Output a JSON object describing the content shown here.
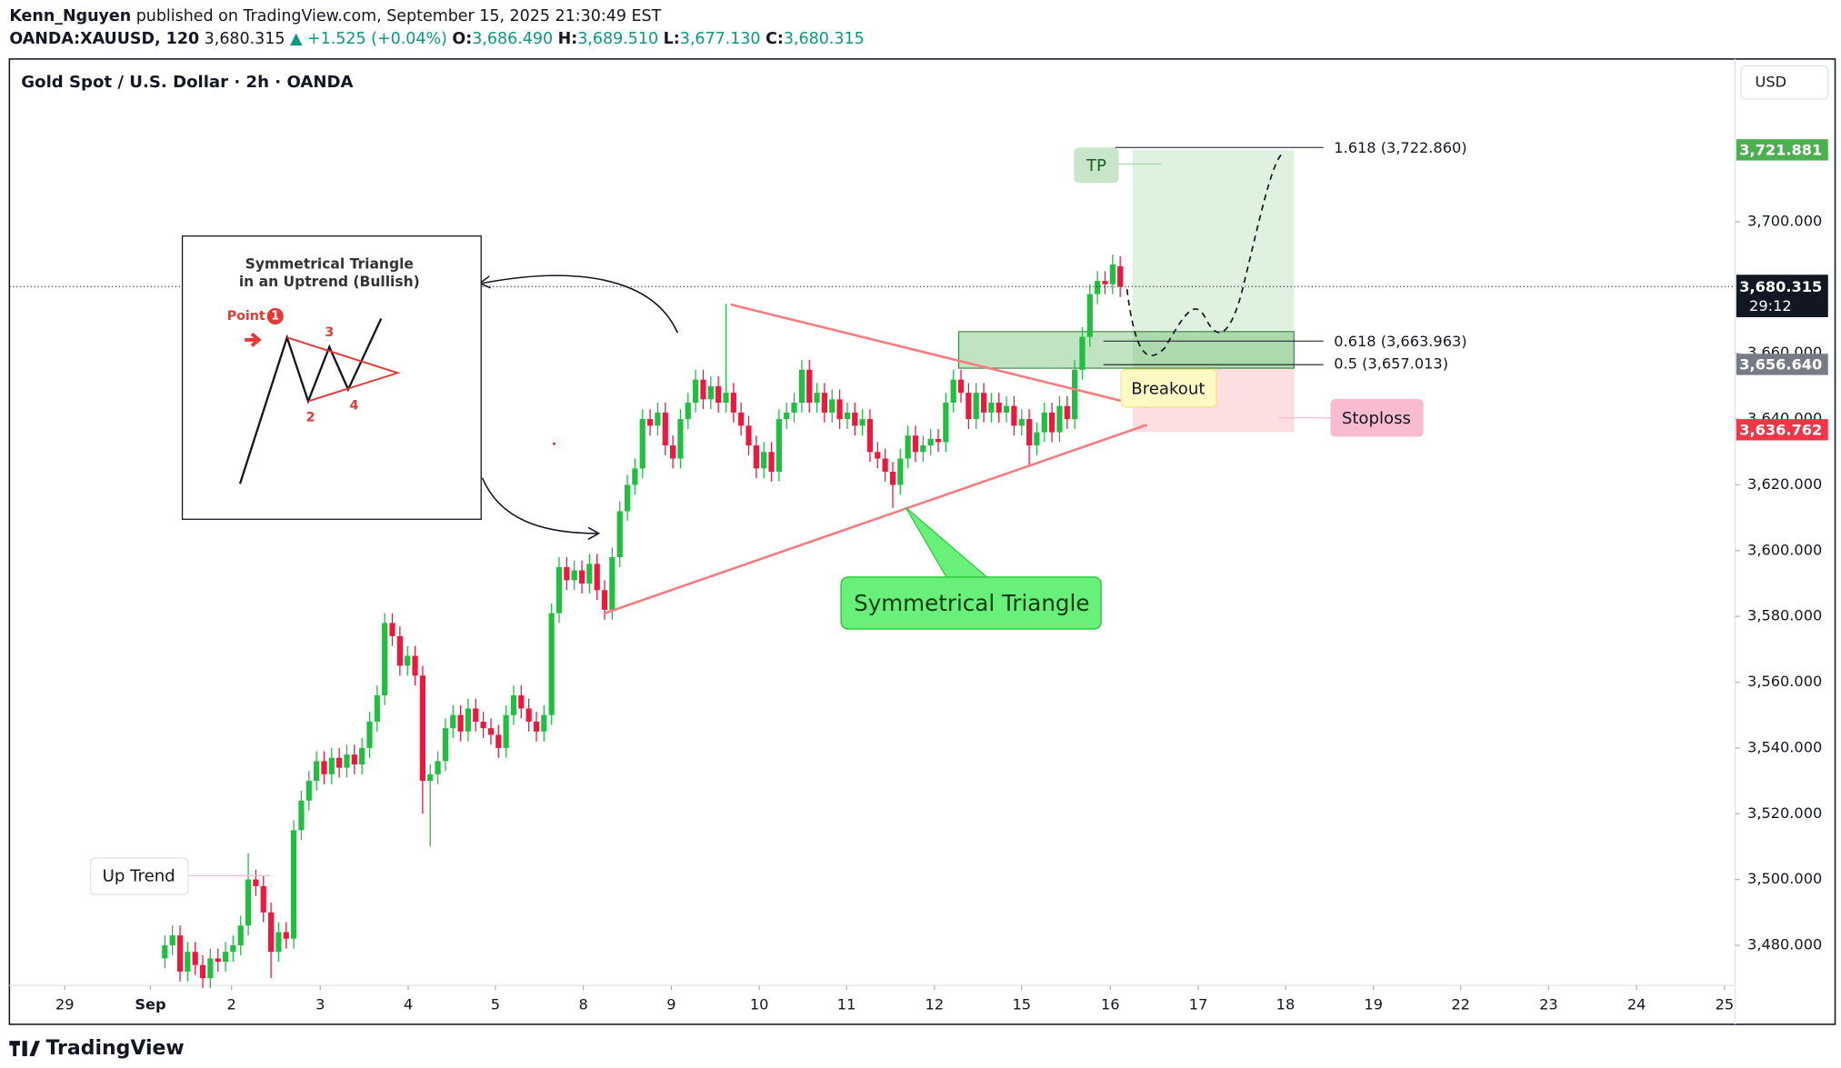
{
  "header": {
    "publisher": "Kenn_Nguyen",
    "published": "published on TradingView.com, September 15, 2025 21:30:49 EST",
    "symbol": "OANDA:XAUUSD, 120",
    "price": "3,680.315",
    "change": "▲ +1.525 (+0.04%)",
    "o_label": "O:",
    "o": "3,686.490",
    "h_label": "H:",
    "h": "3,689.510",
    "l_label": "L:",
    "l": "3,677.130",
    "c_label": "C:",
    "c": "3,680.315"
  },
  "footer": "TradingView",
  "chart_data": {
    "type": "candlestick",
    "title": "Gold Spot / U.S. Dollar · 2h · OANDA",
    "currency": "USD",
    "up_color": "#1fbf3f",
    "down_color": "#f0173f",
    "xlim": [
      -20.5,
      207.1
    ],
    "xticks": [
      {
        "value": -13.2,
        "label": "29"
      },
      {
        "value": -1.9,
        "label": "Sep"
      },
      {
        "value": 8.8,
        "label": "2"
      },
      {
        "value": 20.5,
        "label": "3"
      },
      {
        "value": 32.1,
        "label": "4"
      },
      {
        "value": 43.6,
        "label": "5"
      },
      {
        "value": 55.2,
        "label": "8"
      },
      {
        "value": 66.8,
        "label": "9"
      },
      {
        "value": 78.4,
        "label": "10"
      },
      {
        "value": 89.9,
        "label": "11"
      },
      {
        "value": 101.5,
        "label": "12"
      },
      {
        "value": 113,
        "label": "15"
      },
      {
        "value": 124.7,
        "label": "16"
      },
      {
        "value": 136.3,
        "label": "17"
      },
      {
        "value": 147.8,
        "label": "18"
      },
      {
        "value": 159.4,
        "label": "19"
      },
      {
        "value": 170.9,
        "label": "22"
      },
      {
        "value": 182.5,
        "label": "23"
      },
      {
        "value": 194.1,
        "label": "24"
      },
      {
        "value": 205.7,
        "label": "25"
      }
    ],
    "ylim": [
      3467.8,
      3749.5
    ],
    "yticks": [
      {
        "value": 3480,
        "label": "3,480.000"
      },
      {
        "value": 3500,
        "label": "3,500.000"
      },
      {
        "value": 3520,
        "label": "3,520.000"
      },
      {
        "value": 3540,
        "label": "3,540.000"
      },
      {
        "value": 3560,
        "label": "3,560.000"
      },
      {
        "value": 3580,
        "label": "3,580.000"
      },
      {
        "value": 3600,
        "label": "3,600.000"
      },
      {
        "value": 3620,
        "label": "3,620.000"
      },
      {
        "value": 3640,
        "label": "3,640.000"
      },
      {
        "value": 3660,
        "label": "3,660.000"
      },
      {
        "value": 3700,
        "label": "3,700.000"
      }
    ],
    "open": [
      3476,
      3480,
      3483,
      3472,
      3478,
      3474,
      3470,
      3476,
      3475,
      3478,
      3480,
      3486,
      3500,
      3498,
      3490,
      3478,
      3484,
      3482,
      3515,
      3524,
      3530,
      3536,
      3532,
      3537,
      3534,
      3538,
      3535,
      3540,
      3548,
      3556,
      3578,
      3574,
      3565,
      3568,
      3562,
      3530,
      3532,
      3536,
      3546,
      3550,
      3545,
      3552,
      3548,
      3546,
      3544,
      3540,
      3550,
      3556,
      3552,
      3548,
      3545,
      3550,
      3581,
      3595,
      3591,
      3594,
      3590,
      3596,
      3588,
      3582,
      3598,
      3612,
      3620,
      3625,
      3640,
      3638,
      3642,
      3632,
      3628,
      3640,
      3645,
      3652,
      3646,
      3650,
      3645,
      3648,
      3642,
      3638,
      3632,
      3625,
      3630,
      3624,
      3640,
      3642,
      3645,
      3655,
      3645,
      3648,
      3642,
      3646,
      3640,
      3642,
      3638,
      3640,
      3630,
      3628,
      3624,
      3620,
      3628,
      3635,
      3630,
      3632,
      3634,
      3633,
      3645,
      3652,
      3648,
      3640,
      3648,
      3642,
      3645,
      3642,
      3644,
      3638,
      3640,
      3632,
      3636,
      3642,
      3636,
      3644,
      3640,
      3655,
      3665,
      3678,
      3682,
      3681,
      3686.49
    ],
    "high": [
      3483,
      3486,
      3486,
      3481,
      3481,
      3477,
      3479,
      3479,
      3481,
      3483,
      3489,
      3508,
      3503,
      3501,
      3493,
      3487,
      3487,
      3518,
      3527,
      3533,
      3539,
      3539,
      3540,
      3540,
      3541,
      3541,
      3543,
      3551,
      3559,
      3581,
      3581,
      3577,
      3571,
      3571,
      3565,
      3535,
      3539,
      3549,
      3553,
      3553,
      3555,
      3555,
      3551,
      3549,
      3547,
      3553,
      3559,
      3559,
      3555,
      3551,
      3553,
      3584,
      3598,
      3598,
      3597,
      3597,
      3599,
      3599,
      3591,
      3601,
      3615,
      3623,
      3628,
      3643,
      3643,
      3645,
      3645,
      3635,
      3643,
      3648,
      3655,
      3655,
      3653,
      3653,
      3675,
      3651,
      3645,
      3641,
      3635,
      3633,
      3633,
      3643,
      3645,
      3648,
      3658,
      3658,
      3651,
      3651,
      3649,
      3649,
      3645,
      3645,
      3643,
      3643,
      3633,
      3631,
      3627,
      3631,
      3638,
      3638,
      3635,
      3637,
      3637,
      3648,
      3655,
      3655,
      3651,
      3651,
      3651,
      3648,
      3648,
      3647,
      3647,
      3643,
      3643,
      3639,
      3645,
      3645,
      3647,
      3647,
      3658,
      3668,
      3681,
      3685,
      3685,
      3690,
      3689.51
    ],
    "low": [
      3473,
      3477,
      3469,
      3469,
      3471,
      3467,
      3467,
      3472,
      3472,
      3475,
      3477,
      3483,
      3495,
      3487,
      3470,
      3475,
      3479,
      3479,
      3512,
      3521,
      3527,
      3529,
      3529,
      3531,
      3531,
      3532,
      3532,
      3537,
      3545,
      3553,
      3571,
      3562,
      3562,
      3559,
      3520,
      3510,
      3529,
      3533,
      3543,
      3542,
      3542,
      3545,
      3543,
      3541,
      3537,
      3537,
      3547,
      3549,
      3545,
      3542,
      3542,
      3547,
      3578,
      3588,
      3588,
      3587,
      3587,
      3585,
      3579,
      3579,
      3595,
      3609,
      3617,
      3622,
      3635,
      3635,
      3629,
      3625,
      3625,
      3637,
      3642,
      3643,
      3643,
      3642,
      3642,
      3639,
      3635,
      3629,
      3622,
      3622,
      3621,
      3621,
      3637,
      3639,
      3642,
      3642,
      3642,
      3639,
      3639,
      3637,
      3637,
      3635,
      3635,
      3627,
      3625,
      3621,
      3613,
      3617,
      3625,
      3627,
      3627,
      3629,
      3630,
      3630,
      3642,
      3645,
      3637,
      3637,
      3639,
      3639,
      3639,
      3639,
      3635,
      3635,
      3626,
      3629,
      3633,
      3633,
      3633,
      3637,
      3637,
      3652,
      3662,
      3675,
      3678,
      3678,
      3677.13
    ],
    "close": [
      3480,
      3483,
      3472,
      3478,
      3474,
      3470,
      3476,
      3475,
      3478,
      3480,
      3486,
      3500,
      3498,
      3490,
      3478,
      3484,
      3482,
      3515,
      3524,
      3530,
      3536,
      3532,
      3537,
      3534,
      3538,
      3535,
      3540,
      3548,
      3556,
      3578,
      3574,
      3565,
      3568,
      3562,
      3530,
      3532,
      3536,
      3546,
      3550,
      3545,
      3552,
      3548,
      3546,
      3544,
      3540,
      3550,
      3556,
      3552,
      3548,
      3545,
      3550,
      3581,
      3595,
      3591,
      3594,
      3590,
      3596,
      3588,
      3582,
      3598,
      3612,
      3620,
      3625,
      3640,
      3638,
      3642,
      3632,
      3628,
      3640,
      3645,
      3652,
      3646,
      3650,
      3645,
      3648,
      3642,
      3638,
      3632,
      3625,
      3630,
      3624,
      3640,
      3642,
      3645,
      3655,
      3645,
      3648,
      3642,
      3646,
      3640,
      3642,
      3638,
      3640,
      3630,
      3628,
      3624,
      3620,
      3628,
      3635,
      3630,
      3632,
      3634,
      3633,
      3645,
      3652,
      3648,
      3640,
      3648,
      3642,
      3645,
      3642,
      3644,
      3638,
      3640,
      3632,
      3636,
      3642,
      3636,
      3644,
      3640,
      3655,
      3665,
      3678,
      3682,
      3681,
      3687,
      3680.315
    ],
    "last_price": {
      "value": 3680.315,
      "label": "3,680.315",
      "countdown": "29:12",
      "color": "#131722"
    },
    "price_labels": [
      {
        "value": 3721.881,
        "label": "3,721.881",
        "color": "#4caf50"
      },
      {
        "value": 3656.64,
        "label": "3,656.640",
        "color": "#787b86"
      },
      {
        "value": 3636.762,
        "label": "3,636.762",
        "color": "#f23645"
      }
    ],
    "annotations": {
      "fib_1618": "1.618 (3,722.860)",
      "fib_0618": "0.618 (3,663.963)",
      "fib_05": "0.5 (3,657.013)",
      "tp": "TP",
      "breakout": "Breakout",
      "stoploss": "Stoploss",
      "triangle": "Symmetrical Triangle",
      "uptrend": "Up Trend",
      "inset_title_1": "Symmetrical Triangle",
      "inset_title_2": "in an Uptrend (Bullish)",
      "inset_point": "Point",
      "inset_1": "1",
      "inset_2": "2",
      "inset_3": "3",
      "inset_4": "4"
    }
  }
}
